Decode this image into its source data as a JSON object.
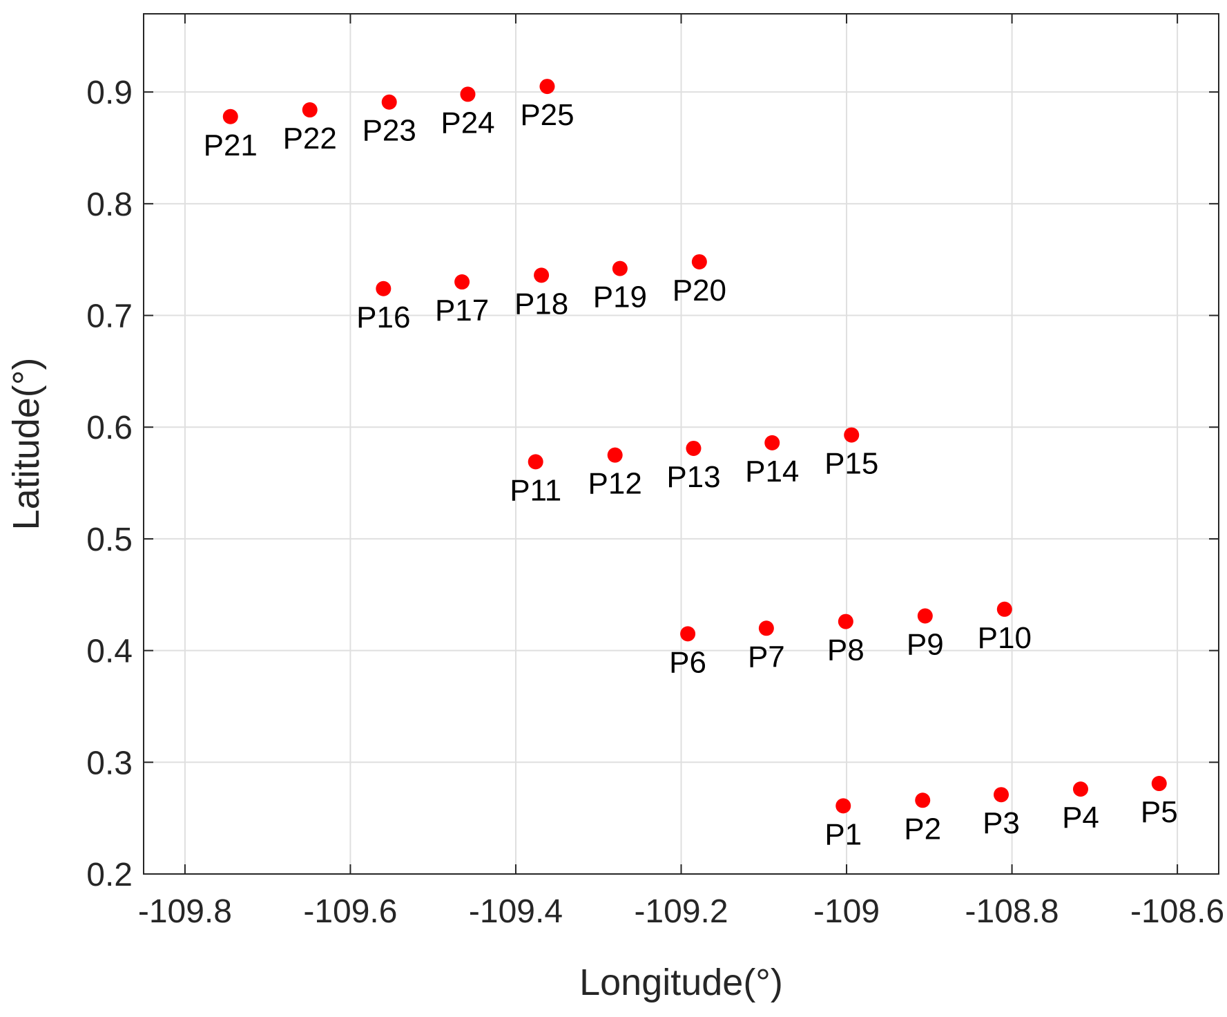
{
  "chart_data": {
    "type": "scatter",
    "title": "",
    "xlabel": "Longitude(°)",
    "ylabel": "Latitude(°)",
    "xlim": [
      -109.85,
      -108.55
    ],
    "ylim": [
      0.2,
      0.97
    ],
    "xticks": [
      -109.8,
      -109.6,
      -109.4,
      -109.2,
      -109.0,
      -108.8,
      -108.6
    ],
    "xtick_labels": [
      "-109.8",
      "-109.6",
      "-109.4",
      "-109.2",
      "-109",
      "-108.8",
      "-108.6"
    ],
    "yticks": [
      0.2,
      0.3,
      0.4,
      0.5,
      0.6,
      0.7,
      0.8,
      0.9
    ],
    "ytick_labels": [
      "0.2",
      "0.3",
      "0.4",
      "0.5",
      "0.6",
      "0.7",
      "0.8",
      "0.9"
    ],
    "grid": true,
    "marker_color": "#ff0000",
    "points": [
      {
        "label": "P1",
        "x": -109.004,
        "y": 0.261
      },
      {
        "label": "P2",
        "x": -108.908,
        "y": 0.266
      },
      {
        "label": "P3",
        "x": -108.813,
        "y": 0.271
      },
      {
        "label": "P4",
        "x": -108.717,
        "y": 0.276
      },
      {
        "label": "P5",
        "x": -108.622,
        "y": 0.281
      },
      {
        "label": "P6",
        "x": -109.192,
        "y": 0.415
      },
      {
        "label": "P7",
        "x": -109.097,
        "y": 0.42
      },
      {
        "label": "P8",
        "x": -109.001,
        "y": 0.426
      },
      {
        "label": "P9",
        "x": -108.905,
        "y": 0.431
      },
      {
        "label": "P10",
        "x": -108.809,
        "y": 0.437
      },
      {
        "label": "P11",
        "x": -109.376,
        "y": 0.569
      },
      {
        "label": "P12",
        "x": -109.28,
        "y": 0.575
      },
      {
        "label": "P13",
        "x": -109.185,
        "y": 0.581
      },
      {
        "label": "P14",
        "x": -109.09,
        "y": 0.586
      },
      {
        "label": "P15",
        "x": -108.994,
        "y": 0.593
      },
      {
        "label": "P16",
        "x": -109.56,
        "y": 0.724
      },
      {
        "label": "P17",
        "x": -109.465,
        "y": 0.73
      },
      {
        "label": "P18",
        "x": -109.369,
        "y": 0.736
      },
      {
        "label": "P19",
        "x": -109.274,
        "y": 0.742
      },
      {
        "label": "P20",
        "x": -109.178,
        "y": 0.748
      },
      {
        "label": "P21",
        "x": -109.745,
        "y": 0.878
      },
      {
        "label": "P22",
        "x": -109.649,
        "y": 0.884
      },
      {
        "label": "P23",
        "x": -109.553,
        "y": 0.891
      },
      {
        "label": "P24",
        "x": -109.458,
        "y": 0.898
      },
      {
        "label": "P25",
        "x": -109.362,
        "y": 0.905
      }
    ]
  }
}
